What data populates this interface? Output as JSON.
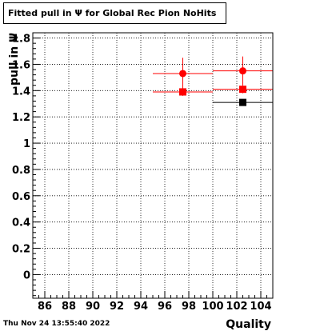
{
  "title": "Fitted pull in  Ψ  for Global Rec Pion NoHits",
  "timestamp": "Thu Nov 24 13:55:40 2022",
  "chart_data": {
    "type": "scatter",
    "title": "Fitted pull in  Ψ  for Global Rec Pion NoHits",
    "xlabel": "Quality",
    "ylabel": "pull in  Ψ",
    "xlim": [
      85,
      105
    ],
    "ylim": [
      -0.18,
      1.84
    ],
    "grid": true,
    "xticks": [
      86,
      88,
      90,
      92,
      94,
      96,
      98,
      100,
      102,
      104
    ],
    "xtick_labels": [
      "86",
      "88",
      "90",
      "92",
      "94",
      "96",
      "98",
      "100",
      "102",
      "104"
    ],
    "yticks": [
      0,
      0.2,
      0.4,
      0.6,
      0.8,
      1,
      1.2,
      1.4,
      1.6,
      1.8
    ],
    "ytick_labels": [
      "0",
      "0.2",
      "0.4",
      "0.6",
      "0.8",
      "1",
      "1.2",
      "1.4",
      "1.6",
      "1.8"
    ],
    "series": [
      {
        "marker": "square",
        "color": "#000000",
        "points": [
          {
            "x": 97.5,
            "y": 1.39,
            "xerr": 2.5,
            "yerr": 0.02
          },
          {
            "x": 102.5,
            "y": 1.31,
            "xerr": 2.5,
            "yerr": 0.02
          }
        ]
      },
      {
        "marker": "square",
        "color": "#ff0000",
        "points": [
          {
            "x": 97.5,
            "y": 1.39,
            "xerr": 2.5,
            "yerr": 0.03
          },
          {
            "x": 102.5,
            "y": 1.41,
            "xerr": 2.5,
            "yerr": 0.03
          }
        ]
      },
      {
        "marker": "circle",
        "color": "#ff0000",
        "points": [
          {
            "x": 97.5,
            "y": 1.53,
            "xerr": 2.5,
            "yerr": 0.12
          },
          {
            "x": 102.5,
            "y": 1.55,
            "xerr": 2.5,
            "yerr": 0.11
          }
        ]
      }
    ]
  }
}
